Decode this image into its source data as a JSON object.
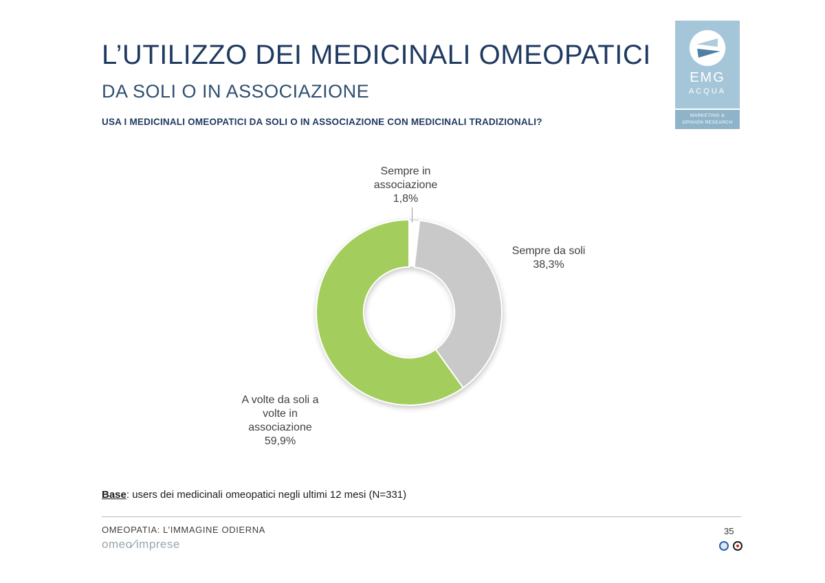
{
  "slide": {
    "title": "L’UTILIZZO DEI MEDICINALI OMEOPATICI",
    "subtitle": "DA SOLI O IN ASSOCIAZIONE",
    "question": "USA I MEDICINALI OMEOPATICI DA SOLI O IN ASSOCIAZIONE CON MEDICINALI TRADIZIONALI?",
    "base_label": "Base",
    "base_rest": ": users dei medicinali omeopatici negli ultimi 12 mesi (N=331)",
    "footer_title": "OMEOPATIA: L’IMMAGINE ODIERNA",
    "footer_logo_left": "omeo",
    "footer_logo_slash": "⁄",
    "footer_logo_right": "imprese",
    "page_number": "35"
  },
  "logo": {
    "name": "EMG",
    "sub": "ACQUA",
    "band": "MARKETING &\nOPINION RESEARCH",
    "icon": "emg-arrows-circle-icon",
    "bg_color": "#A5C6D8",
    "band_color": "#8FB4C9"
  },
  "chart_data": {
    "type": "pie",
    "subtype": "donut",
    "title": "",
    "categories": [
      "Sempre in associazione",
      "Sempre da soli",
      "A volte da soli a volte in associazione"
    ],
    "values": [
      1.8,
      38.3,
      59.9
    ],
    "value_labels": [
      "1,8%",
      "38,3%",
      "59,9%"
    ],
    "colors": [
      "#FFFFFF",
      "#C9C9C9",
      "#A3CE5E"
    ],
    "start_angle_deg": -90,
    "direction": "clockwise",
    "inner_radius_ratio": 0.49,
    "legend": "none",
    "callouts": [
      "Sempre in\nassociazione\n1,8%",
      "Sempre da soli\n38,3%",
      "A volte da soli a\nvolte in\nassociazione\n59,9%"
    ]
  }
}
